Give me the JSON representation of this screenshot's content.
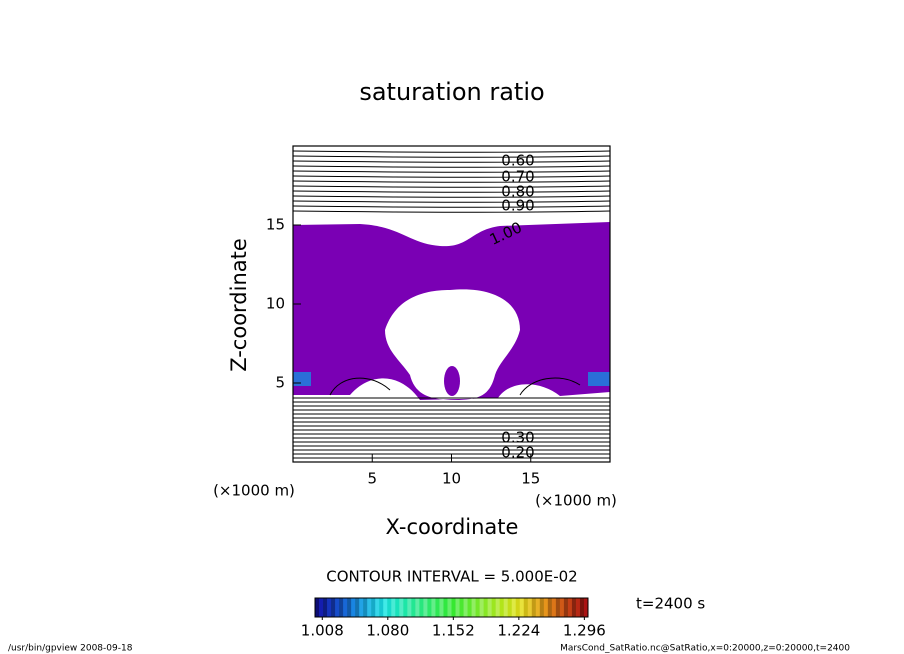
{
  "chart_data": {
    "type": "contour",
    "title": "saturation ratio",
    "xlabel": "X-coordinate",
    "ylabel": "Z-coordinate",
    "x_unit_label": "(×1000 m)",
    "y_unit_label": "(×1000 m)",
    "xlim": [
      0,
      20
    ],
    "xticks": [
      5,
      10,
      15
    ],
    "ylim": [
      0,
      20
    ],
    "yticks": [
      5,
      10,
      15
    ],
    "fill_color": "#7a00b4",
    "contour_labels": [
      {
        "value": 0.6,
        "label": "0.60"
      },
      {
        "value": 0.7,
        "label": "0.70"
      },
      {
        "value": 0.8,
        "label": "0.80"
      },
      {
        "value": 0.9,
        "label": "0.90"
      },
      {
        "value": 1.0,
        "label": "1.00"
      },
      {
        "value": 0.3,
        "label": "0.30"
      },
      {
        "value": 0.2,
        "label": "0.20"
      }
    ],
    "contour_interval_text": "CONTOUR INTERVAL = 5.000E-02",
    "colorbar": {
      "lim": [
        1.0,
        1.3
      ],
      "ticks": [
        {
          "value": 1.008,
          "label": "1.008"
        },
        {
          "value": 1.08,
          "label": "1.080"
        },
        1.152,
        1.224,
        1.296
      ]
    },
    "time_label": "t=2400 s",
    "footer_left": "/usr/bin/gpview  2008-09-18",
    "footer_right": "MarsCond_SatRatio.nc@SatRatio,x=0:20000,z=0:20000,t=2400"
  }
}
